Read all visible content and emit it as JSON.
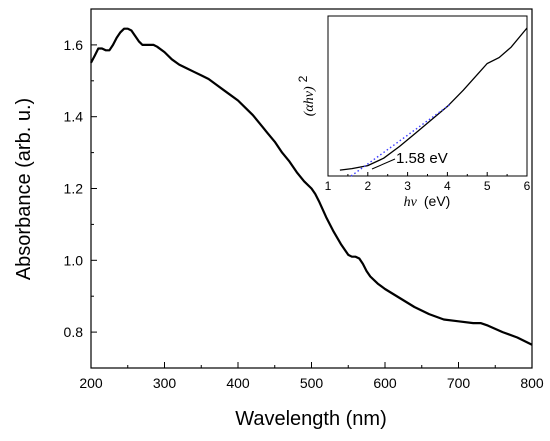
{
  "chart_data": [
    {
      "type": "line",
      "title": "",
      "xlabel": "Wavelength (nm)",
      "ylabel": "Absorbance (arb. u.)",
      "xlim": [
        200,
        800
      ],
      "ylim": [
        0.7,
        1.7
      ],
      "xticks": [
        "200",
        "300",
        "400",
        "500",
        "600",
        "700",
        "800"
      ],
      "yticks": [
        "0.8",
        "1.0",
        "1.2",
        "1.4",
        "1.6"
      ],
      "grid": false,
      "series": [
        {
          "color": "#000000",
          "x": [
            200,
            205,
            210,
            215,
            220,
            225,
            230,
            235,
            240,
            245,
            250,
            255,
            260,
            265,
            270,
            275,
            280,
            285,
            290,
            300,
            310,
            320,
            330,
            340,
            350,
            360,
            370,
            380,
            390,
            400,
            410,
            420,
            430,
            440,
            450,
            460,
            470,
            480,
            490,
            500,
            505,
            510,
            520,
            530,
            540,
            550,
            555,
            560,
            565,
            570,
            575,
            580,
            590,
            600,
            620,
            640,
            660,
            680,
            700,
            720,
            730,
            740,
            760,
            780,
            800
          ],
          "y": [
            1.55,
            1.57,
            1.59,
            1.59,
            1.585,
            1.585,
            1.6,
            1.62,
            1.635,
            1.645,
            1.645,
            1.64,
            1.625,
            1.61,
            1.6,
            1.6,
            1.6,
            1.6,
            1.595,
            1.58,
            1.56,
            1.545,
            1.535,
            1.525,
            1.515,
            1.505,
            1.49,
            1.475,
            1.46,
            1.445,
            1.425,
            1.405,
            1.38,
            1.355,
            1.33,
            1.3,
            1.275,
            1.245,
            1.22,
            1.2,
            1.185,
            1.165,
            1.12,
            1.08,
            1.045,
            1.015,
            1.01,
            1.01,
            1.005,
            0.99,
            0.97,
            0.955,
            0.935,
            0.92,
            0.895,
            0.87,
            0.85,
            0.835,
            0.83,
            0.825,
            0.825,
            0.818,
            0.8,
            0.785,
            0.765
          ]
        }
      ]
    },
    {
      "type": "line",
      "title": "",
      "xlabel_italic": "hν",
      "xlabel_unit": "(eV)",
      "ylabel_core": "(αhν)",
      "ylabel_exp": "2",
      "xlim": [
        1,
        6
      ],
      "xticks": [
        "1",
        "2",
        "3",
        "4",
        "5",
        "6"
      ],
      "annotation": "1.58 eV",
      "bandgap_ev": 1.58,
      "series": [
        {
          "name": "",
          "color": "#000000",
          "x": [
            1.3,
            1.6,
            2.0,
            2.4,
            2.8,
            3.2,
            3.6,
            4.0,
            4.4,
            4.8,
            5.0,
            5.3,
            5.6,
            6.0
          ],
          "y": [
            0.04,
            0.05,
            0.07,
            0.12,
            0.2,
            0.29,
            0.38,
            0.47,
            0.58,
            0.7,
            0.76,
            0.8,
            0.87,
            1.0
          ]
        },
        {
          "name": "",
          "color": "#3a3aff",
          "style": "dotted",
          "x": [
            1.58,
            4.1
          ],
          "y": [
            0.0,
            0.49
          ]
        }
      ]
    }
  ]
}
